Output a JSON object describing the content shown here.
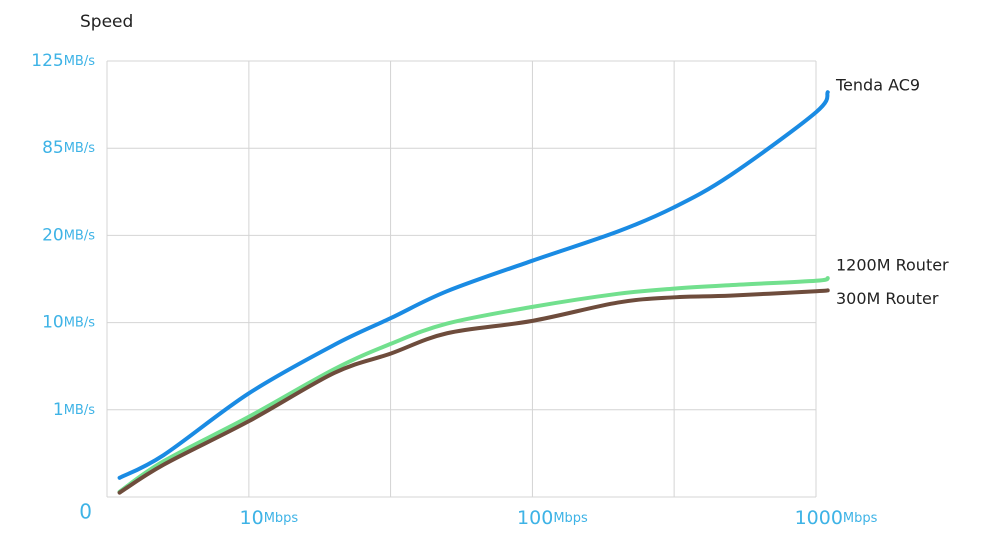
{
  "chart_data": {
    "type": "line",
    "y_label": "Speed",
    "x": [
      3.5,
      5,
      10,
      20,
      31.6,
      50,
      100,
      200,
      316,
      500,
      1000,
      1100
    ],
    "series": [
      {
        "name": "Tenda AC9",
        "color": "#1a8be3",
        "values": [
          0.22,
          0.48,
          2.7,
          7.7,
          10.5,
          13.6,
          17.1,
          22.9,
          41,
          65,
          101.5,
          110.7
        ]
      },
      {
        "name": "1200M Router",
        "color": "#72e08e",
        "values": [
          0.06,
          0.41,
          0.92,
          5.2,
          7.8,
          9.9,
          11.8,
          13.3,
          13.9,
          14.3,
          14.8,
          15.1
        ]
      },
      {
        "name": "300M Router",
        "color": "#6e4c3c",
        "values": [
          0.05,
          0.37,
          0.87,
          4.8,
          6.8,
          8.9,
          10.2,
          12.3,
          12.9,
          13.1,
          13.6,
          13.7
        ]
      }
    ],
    "xlog": true,
    "xlim": [
      3.16,
      1000
    ],
    "xticks": [
      {
        "value": 10,
        "label": "10Mbps"
      },
      {
        "value": 31.6,
        "label": null
      },
      {
        "value": 100,
        "label": "100Mbps"
      },
      {
        "value": 316,
        "label": null
      },
      {
        "value": 1000,
        "label": "1000Mbps"
      }
    ],
    "ylim": [
      0,
      125
    ],
    "yticks": [
      0,
      {
        "value": 1,
        "label": "1MB/s"
      },
      {
        "value": 10,
        "label": "10MB/s"
      },
      {
        "value": 20,
        "label": "20MB/s"
      },
      {
        "value": 85,
        "label": "85MB/s"
      },
      {
        "value": 125,
        "label": "125MB/s"
      }
    ],
    "grid": true
  }
}
